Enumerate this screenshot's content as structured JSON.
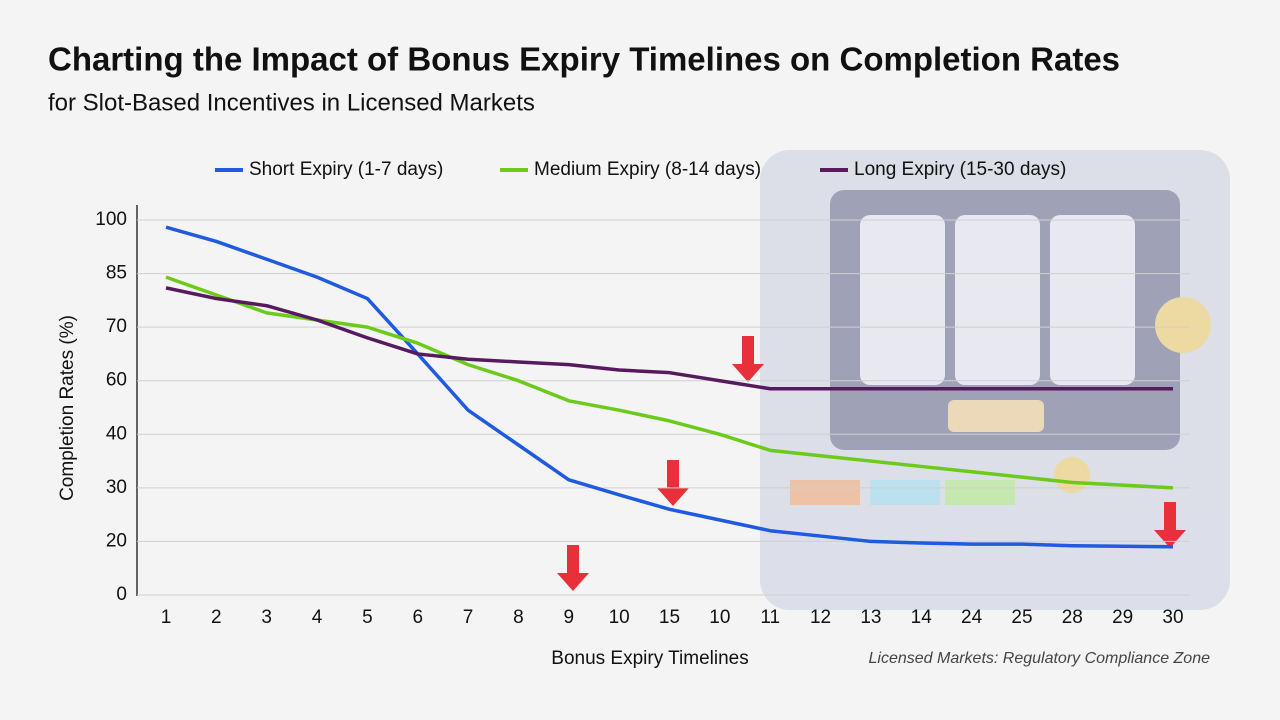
{
  "chart_data": {
    "type": "line",
    "title": "Charting the Impact of Bonus Expiry Timelines on Completion Rates",
    "subtitle": "for Slot-Based Incentives in Licensed Markets",
    "x_label": "Bonus Expiry Timelines",
    "y_label": "Completion Rates (%)",
    "annotation": "Licensed Markets: Regulatory Compliance Zone",
    "categories": [
      "1",
      "2",
      "3",
      "4",
      "5",
      "6",
      "7",
      "8",
      "9",
      "10",
      "15",
      "10",
      "11",
      "12",
      "13",
      "14",
      "24",
      "25",
      "28",
      "29",
      "30"
    ],
    "series": [
      {
        "name": "Short Expiry (1-7 days)",
        "color": "#1f5ae0",
        "values": [
          98,
          94,
          89,
          84,
          78,
          65,
          49,
          38,
          31.5,
          28.7,
          26,
          24,
          22,
          21,
          20,
          19.4,
          19,
          19,
          18.4,
          18.2,
          18
        ]
      },
      {
        "name": "Medium Expiry (8-14 days)",
        "color": "#6ccb1a",
        "values": [
          84,
          79,
          74,
          72,
          70,
          67,
          63,
          60,
          52.5,
          49,
          45,
          40,
          37,
          36,
          35,
          34,
          33,
          32,
          31,
          30.5,
          30
        ]
      },
      {
        "name": "Long Expiry (15-30 days)",
        "color": "#571a5e",
        "values": [
          81,
          78,
          76,
          72,
          68,
          65,
          64,
          63.5,
          63,
          62,
          61.5,
          60,
          57,
          57,
          57,
          57,
          57,
          57,
          57,
          57,
          57
        ]
      }
    ],
    "ylim": [
      0,
      100
    ],
    "yticks": [
      0,
      20,
      30,
      40,
      60,
      70,
      85,
      100
    ],
    "grid": true
  }
}
